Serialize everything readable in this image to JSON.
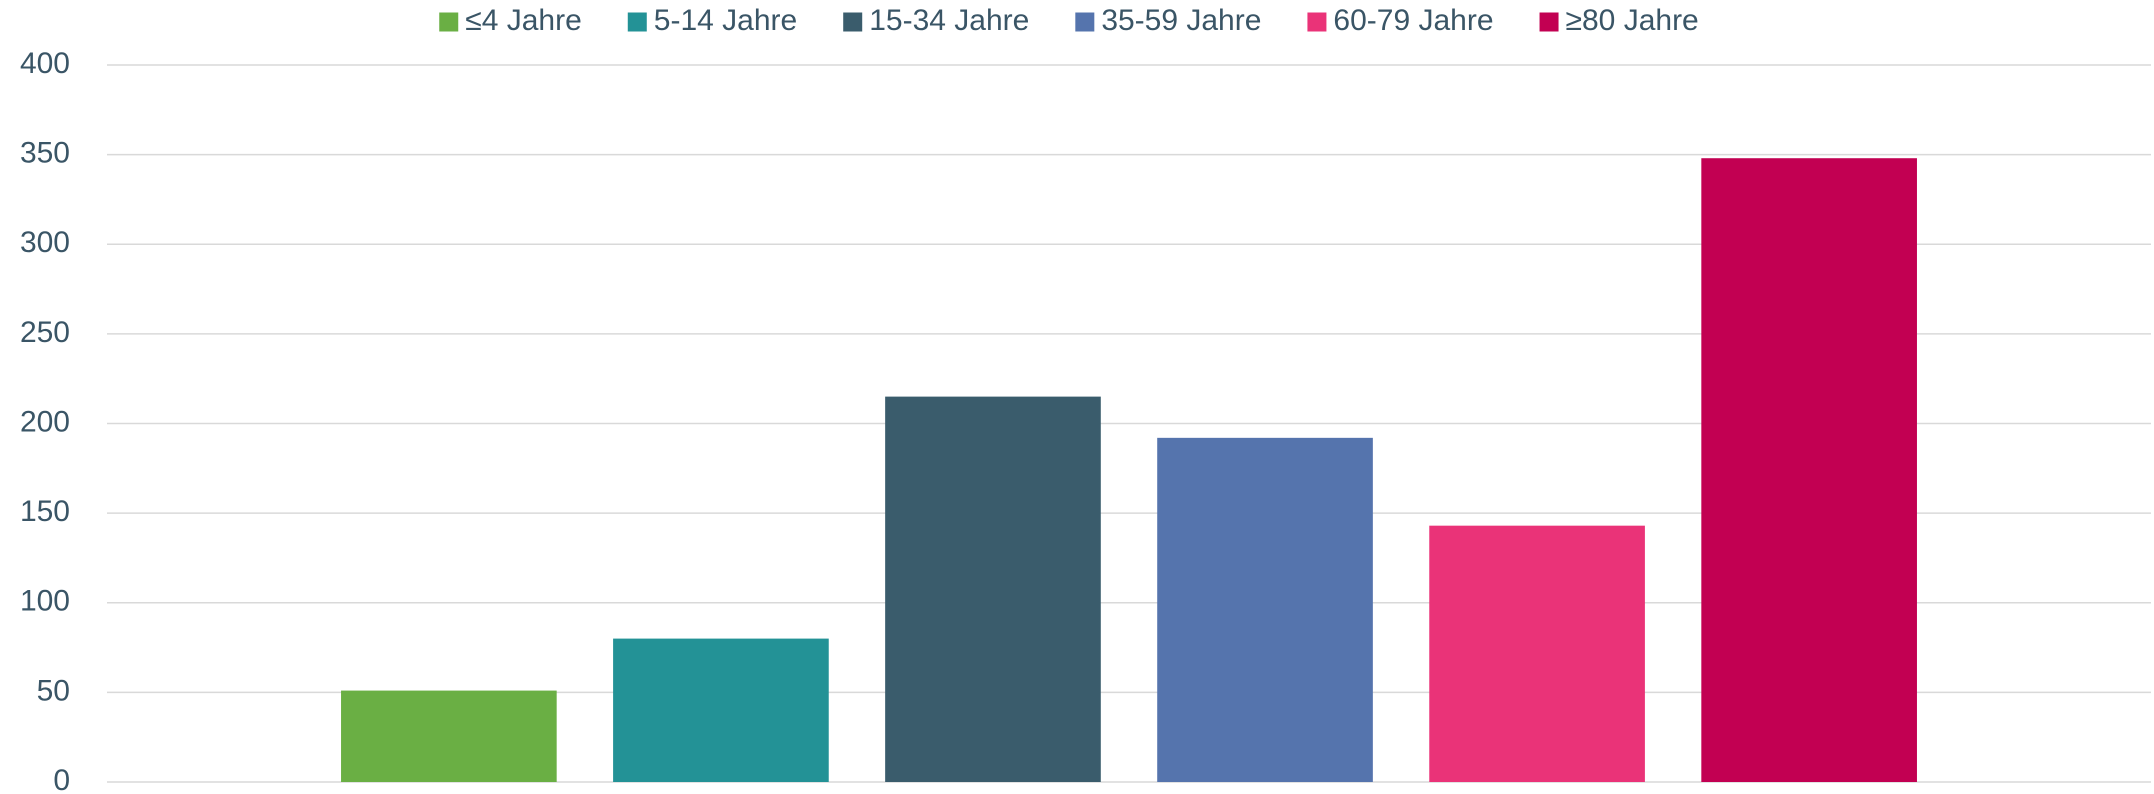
{
  "chart_data": {
    "type": "bar",
    "categories": [
      null
    ],
    "series": [
      {
        "name": "≤4 Jahre",
        "color": "#6aaf44",
        "values": [
          51
        ]
      },
      {
        "name": "5-14 Jahre",
        "color": "#239296",
        "values": [
          80
        ]
      },
      {
        "name": "15-34 Jahre",
        "color": "#3a5c6c",
        "values": [
          215
        ]
      },
      {
        "name": "35-59 Jahre",
        "color": "#5574ad",
        "values": [
          192
        ]
      },
      {
        "name": "60-79 Jahre",
        "color": "#ea3378",
        "values": [
          143
        ]
      },
      {
        "name": "≥80 Jahre",
        "color": "#c20052",
        "values": [
          348
        ]
      }
    ],
    "ylim": [
      0,
      400
    ],
    "yticks": [
      0,
      50,
      100,
      150,
      200,
      250,
      300,
      350,
      400
    ],
    "grid": true,
    "legend": "top"
  }
}
